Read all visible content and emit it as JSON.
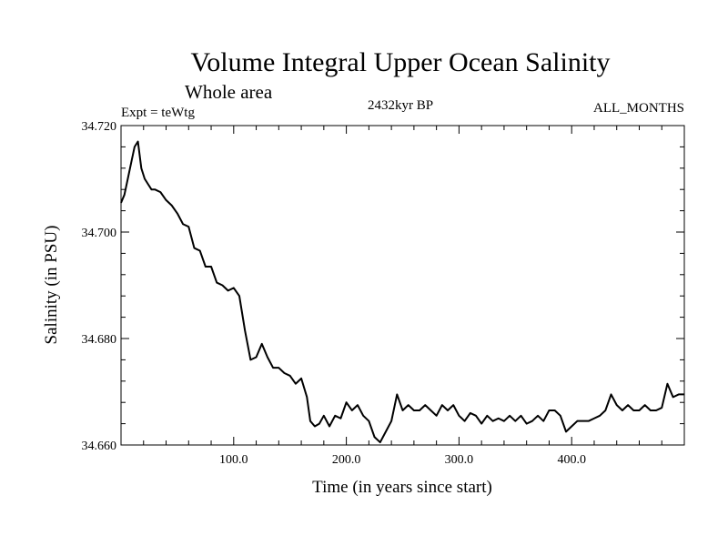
{
  "chart_data": {
    "type": "line",
    "title": "Volume Integral Upper Ocean Salinity",
    "subtitle": "Whole area",
    "experiment": "Expt = teWtg",
    "period": "2432kyr BP",
    "months": "ALL_MONTHS",
    "xlabel": "Time (in years since start)",
    "ylabel": "Salinity (in PSU)",
    "xlim": [
      0,
      500
    ],
    "ylim": [
      34.66,
      34.72
    ],
    "x_ticks": [
      100,
      200,
      300,
      400
    ],
    "x_tick_labels": [
      "100.0",
      "200.0",
      "300.0",
      "400.0"
    ],
    "y_ticks": [
      34.66,
      34.68,
      34.7,
      34.72
    ],
    "y_tick_labels": [
      "34.660",
      "34.680",
      "34.700",
      "34.720"
    ],
    "grid": false,
    "series": [
      {
        "name": "Salinity",
        "color": "#000000",
        "x": [
          0,
          3,
          6,
          9,
          12,
          15,
          18,
          21,
          24,
          27,
          30,
          35,
          40,
          45,
          50,
          55,
          60,
          65,
          70,
          75,
          80,
          85,
          90,
          95,
          100,
          105,
          110,
          115,
          120,
          125,
          130,
          135,
          140,
          145,
          150,
          155,
          160,
          165,
          168,
          172,
          176,
          180,
          185,
          190,
          195,
          200,
          205,
          210,
          215,
          220,
          225,
          230,
          235,
          240,
          245,
          250,
          255,
          260,
          265,
          270,
          275,
          280,
          285,
          290,
          295,
          300,
          305,
          310,
          315,
          320,
          325,
          330,
          335,
          340,
          345,
          350,
          355,
          360,
          365,
          370,
          375,
          380,
          385,
          390,
          395,
          400,
          405,
          410,
          415,
          420,
          425,
          430,
          435,
          440,
          445,
          450,
          455,
          460,
          465,
          470,
          475,
          480,
          485,
          490,
          495,
          500
        ],
        "values": [
          34.7055,
          34.707,
          34.71,
          34.713,
          34.716,
          34.717,
          34.712,
          34.71,
          34.709,
          34.708,
          34.708,
          34.7075,
          34.706,
          34.705,
          34.7035,
          34.7015,
          34.701,
          34.697,
          34.6965,
          34.6935,
          34.6935,
          34.6905,
          34.69,
          34.689,
          34.6895,
          34.688,
          34.6815,
          34.676,
          34.6765,
          34.679,
          34.6765,
          34.6745,
          34.6745,
          34.6735,
          34.673,
          34.6715,
          34.6725,
          34.669,
          34.6645,
          34.6635,
          34.664,
          34.6655,
          34.6635,
          34.6655,
          34.665,
          34.668,
          34.6665,
          34.6675,
          34.6655,
          34.6645,
          34.6615,
          34.6605,
          34.6625,
          34.6645,
          34.6695,
          34.6665,
          34.6675,
          34.6665,
          34.6665,
          34.6675,
          34.6665,
          34.6655,
          34.6675,
          34.6665,
          34.6675,
          34.6655,
          34.6645,
          34.666,
          34.6655,
          34.664,
          34.6655,
          34.6645,
          34.665,
          34.6645,
          34.6655,
          34.6645,
          34.6655,
          34.664,
          34.6645,
          34.6655,
          34.6645,
          34.6665,
          34.6665,
          34.6655,
          34.6625,
          34.6635,
          34.6645,
          34.6645,
          34.6645,
          34.665,
          34.6655,
          34.6665,
          34.6695,
          34.6675,
          34.6665,
          34.6675,
          34.6665,
          34.6665,
          34.6675,
          34.6665,
          34.6665,
          34.667,
          34.6715,
          34.669,
          34.6695,
          34.6695
        ]
      }
    ]
  }
}
